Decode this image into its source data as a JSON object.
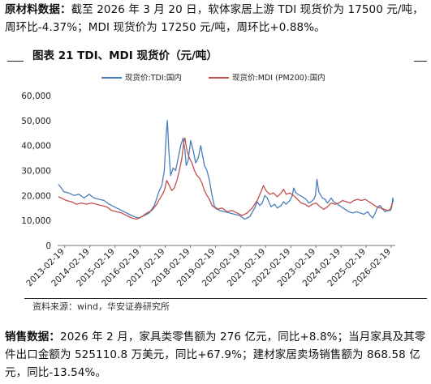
{
  "top_text": {
    "label": "原材料数据：",
    "body": "截至 2026 年 3 月 20 日，软体家居上游 TDI 现货价为 17500 元/吨，周环比-4.37%；MDI 现货价为 17250 元/吨，周环比+0.88%。"
  },
  "figure_title": "图表 21 TDI、MDI 现货价（元/吨）",
  "source": "资料来源：wind，华安证券研究所",
  "bottom_text": {
    "label": "销售数据：",
    "body": "2026 年 2 月，家具类零售额为 276 亿元，同比+8.8%；当月家具及其零件出口金额为 525110.8 万美元，同比+67.9%；建材家居卖场销售额为 868.58 亿元，同比-13.54%。"
  },
  "colors": {
    "tdi": "#4a7ebb",
    "mdi": "#c0504d"
  },
  "chart_data": {
    "type": "line",
    "title": "",
    "xlabel": "",
    "ylabel": "",
    "ylim": [
      0,
      60000
    ],
    "yticks": [
      "0",
      "10,000",
      "20,000",
      "30,000",
      "40,000",
      "50,000",
      "60,000"
    ],
    "xticks": [
      "2013-02-19",
      "2014-02-19",
      "2015-02-19",
      "2016-02-19",
      "2017-02-19",
      "2018-02-19",
      "2019-02-19",
      "2020-02-19",
      "2021-02-19",
      "2022-02-19",
      "2023-02-19",
      "2024-02-19",
      "2025-02-19",
      "2026-02-19"
    ],
    "xrange": [
      2012.85,
      2026.3
    ],
    "grid": false,
    "legend": "top",
    "series": [
      {
        "name": "现货价:TDI:国内",
        "color": "#4a7ebb",
        "points": [
          [
            2012.88,
            24500
          ],
          [
            2013.0,
            23000
          ],
          [
            2013.1,
            21500
          ],
          [
            2013.3,
            21000
          ],
          [
            2013.5,
            20000
          ],
          [
            2013.7,
            20500
          ],
          [
            2013.9,
            19000
          ],
          [
            2014.1,
            20500
          ],
          [
            2014.3,
            19000
          ],
          [
            2014.5,
            18500
          ],
          [
            2014.7,
            18000
          ],
          [
            2014.9,
            16500
          ],
          [
            2015.1,
            15500
          ],
          [
            2015.3,
            14500
          ],
          [
            2015.5,
            13500
          ],
          [
            2015.7,
            12500
          ],
          [
            2015.9,
            11500
          ],
          [
            2016.1,
            11000
          ],
          [
            2016.3,
            12000
          ],
          [
            2016.5,
            13000
          ],
          [
            2016.7,
            16000
          ],
          [
            2016.9,
            22000
          ],
          [
            2017.0,
            24000
          ],
          [
            2017.1,
            30000
          ],
          [
            2017.18,
            45000
          ],
          [
            2017.22,
            50000
          ],
          [
            2017.28,
            38000
          ],
          [
            2017.35,
            28000
          ],
          [
            2017.45,
            31000
          ],
          [
            2017.55,
            30000
          ],
          [
            2017.65,
            35000
          ],
          [
            2017.75,
            40000
          ],
          [
            2017.85,
            43000
          ],
          [
            2017.92,
            38000
          ],
          [
            2017.97,
            32000
          ],
          [
            2018.05,
            34000
          ],
          [
            2018.15,
            42000
          ],
          [
            2018.25,
            38000
          ],
          [
            2018.35,
            33000
          ],
          [
            2018.45,
            35000
          ],
          [
            2018.55,
            40000
          ],
          [
            2018.62,
            36000
          ],
          [
            2018.7,
            32000
          ],
          [
            2018.8,
            30000
          ],
          [
            2018.9,
            26000
          ],
          [
            2019.0,
            20000
          ],
          [
            2019.1,
            15500
          ],
          [
            2019.3,
            14000
          ],
          [
            2019.5,
            13500
          ],
          [
            2019.7,
            13000
          ],
          [
            2019.9,
            12500
          ],
          [
            2020.1,
            12000
          ],
          [
            2020.3,
            10500
          ],
          [
            2020.5,
            11500
          ],
          [
            2020.7,
            15000
          ],
          [
            2020.8,
            17500
          ],
          [
            2020.9,
            16000
          ],
          [
            2021.0,
            17000
          ],
          [
            2021.1,
            20000
          ],
          [
            2021.2,
            19000
          ],
          [
            2021.35,
            15500
          ],
          [
            2021.5,
            16500
          ],
          [
            2021.6,
            15000
          ],
          [
            2021.75,
            16000
          ],
          [
            2021.85,
            17500
          ],
          [
            2021.95,
            16500
          ],
          [
            2022.1,
            18000
          ],
          [
            2022.2,
            20000
          ],
          [
            2022.25,
            23000
          ],
          [
            2022.35,
            21000
          ],
          [
            2022.5,
            20000
          ],
          [
            2022.6,
            19500
          ],
          [
            2022.75,
            18500
          ],
          [
            2022.85,
            17000
          ],
          [
            2022.95,
            17500
          ],
          [
            2023.05,
            18500
          ],
          [
            2023.12,
            20000
          ],
          [
            2023.18,
            26500
          ],
          [
            2023.25,
            21500
          ],
          [
            2023.4,
            19000
          ],
          [
            2023.5,
            18500
          ],
          [
            2023.6,
            17000
          ],
          [
            2023.75,
            19000
          ],
          [
            2023.85,
            17500
          ],
          [
            2024.0,
            16500
          ],
          [
            2024.15,
            15500
          ],
          [
            2024.3,
            14500
          ],
          [
            2024.45,
            13500
          ],
          [
            2024.6,
            13000
          ],
          [
            2024.75,
            13500
          ],
          [
            2024.9,
            13000
          ],
          [
            2025.05,
            12500
          ],
          [
            2025.2,
            13500
          ],
          [
            2025.3,
            12000
          ],
          [
            2025.4,
            11000
          ],
          [
            2025.5,
            13000
          ],
          [
            2025.6,
            15500
          ],
          [
            2025.7,
            16000
          ],
          [
            2025.8,
            14500
          ],
          [
            2025.9,
            13500
          ],
          [
            2026.0,
            14000
          ],
          [
            2026.1,
            14000
          ],
          [
            2026.15,
            15000
          ],
          [
            2026.2,
            19000
          ],
          [
            2026.22,
            17500
          ]
        ]
      },
      {
        "name": "现货价:MDI (PM200):国内",
        "color": "#c0504d",
        "points": [
          [
            2012.88,
            19500
          ],
          [
            2013.0,
            19000
          ],
          [
            2013.2,
            18000
          ],
          [
            2013.4,
            17500
          ],
          [
            2013.6,
            16500
          ],
          [
            2013.8,
            17000
          ],
          [
            2014.0,
            16500
          ],
          [
            2014.2,
            17000
          ],
          [
            2014.4,
            16500
          ],
          [
            2014.6,
            16000
          ],
          [
            2014.8,
            15500
          ],
          [
            2015.0,
            14000
          ],
          [
            2015.2,
            13500
          ],
          [
            2015.4,
            13000
          ],
          [
            2015.6,
            12000
          ],
          [
            2015.8,
            11000
          ],
          [
            2016.0,
            10500
          ],
          [
            2016.2,
            11500
          ],
          [
            2016.4,
            13000
          ],
          [
            2016.6,
            14000
          ],
          [
            2016.8,
            16500
          ],
          [
            2016.9,
            18500
          ],
          [
            2017.0,
            20000
          ],
          [
            2017.1,
            22000
          ],
          [
            2017.2,
            26000
          ],
          [
            2017.3,
            24000
          ],
          [
            2017.4,
            22000
          ],
          [
            2017.5,
            23000
          ],
          [
            2017.6,
            26000
          ],
          [
            2017.7,
            30000
          ],
          [
            2017.8,
            35000
          ],
          [
            2017.87,
            41000
          ],
          [
            2017.92,
            43000
          ],
          [
            2018.0,
            38000
          ],
          [
            2018.1,
            35000
          ],
          [
            2018.2,
            33000
          ],
          [
            2018.3,
            30000
          ],
          [
            2018.4,
            28000
          ],
          [
            2018.5,
            27000
          ],
          [
            2018.6,
            25000
          ],
          [
            2018.7,
            22000
          ],
          [
            2018.8,
            20000
          ],
          [
            2018.9,
            18500
          ],
          [
            2019.0,
            16000
          ],
          [
            2019.2,
            14500
          ],
          [
            2019.4,
            15000
          ],
          [
            2019.6,
            13500
          ],
          [
            2019.8,
            14000
          ],
          [
            2020.0,
            13000
          ],
          [
            2020.2,
            12000
          ],
          [
            2020.4,
            13000
          ],
          [
            2020.6,
            15000
          ],
          [
            2020.8,
            18000
          ],
          [
            2020.95,
            21500
          ],
          [
            2021.05,
            24000
          ],
          [
            2021.15,
            22000
          ],
          [
            2021.3,
            20500
          ],
          [
            2021.45,
            21000
          ],
          [
            2021.6,
            19500
          ],
          [
            2021.75,
            21000
          ],
          [
            2021.85,
            22500
          ],
          [
            2021.95,
            20500
          ],
          [
            2022.1,
            21000
          ],
          [
            2022.25,
            20000
          ],
          [
            2022.4,
            18500
          ],
          [
            2022.55,
            17000
          ],
          [
            2022.7,
            16500
          ],
          [
            2022.85,
            15500
          ],
          [
            2023.0,
            16500
          ],
          [
            2023.15,
            17000
          ],
          [
            2023.3,
            15500
          ],
          [
            2023.45,
            14500
          ],
          [
            2023.6,
            15500
          ],
          [
            2023.75,
            17000
          ],
          [
            2023.9,
            16500
          ],
          [
            2024.05,
            17000
          ],
          [
            2024.2,
            18000
          ],
          [
            2024.35,
            17500
          ],
          [
            2024.5,
            17000
          ],
          [
            2024.65,
            18000
          ],
          [
            2024.8,
            18500
          ],
          [
            2024.95,
            18000
          ],
          [
            2025.1,
            18500
          ],
          [
            2025.25,
            17500
          ],
          [
            2025.4,
            16500
          ],
          [
            2025.55,
            15500
          ],
          [
            2025.7,
            15000
          ],
          [
            2025.85,
            14500
          ],
          [
            2026.0,
            14000
          ],
          [
            2026.1,
            14500
          ],
          [
            2026.2,
            17250
          ]
        ]
      }
    ]
  }
}
